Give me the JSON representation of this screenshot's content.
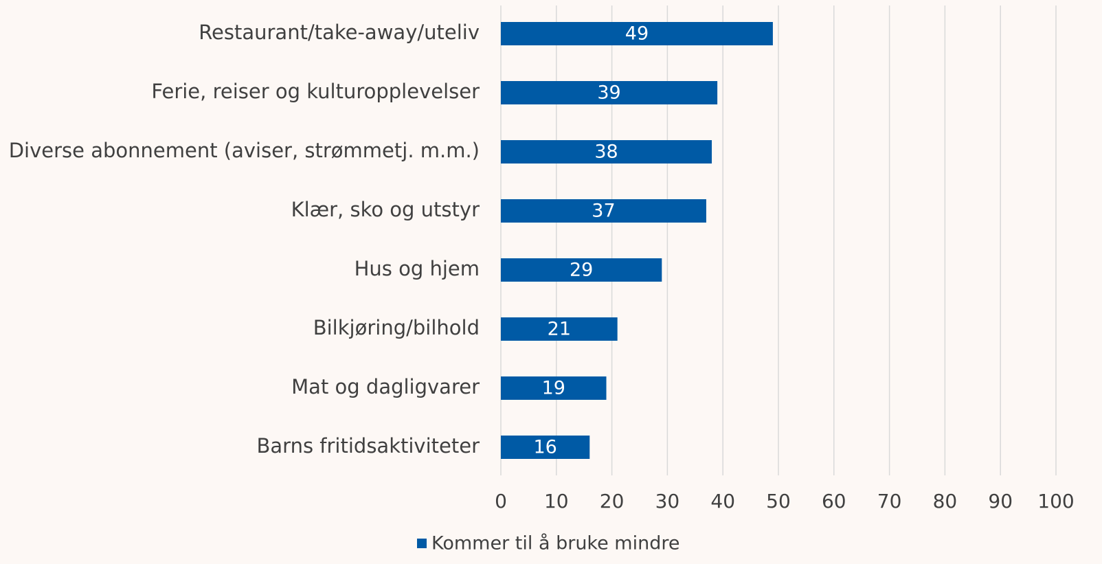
{
  "chart_data": {
    "type": "barh",
    "categories": [
      "Restaurant/take-away/uteliv",
      "Ferie, reiser og kulturopplevelser",
      "Diverse abonnement (aviser, strømmetj. m.m.)",
      "Klær, sko og utstyr ",
      "Hus og hjem",
      "Bilkjøring/bilhold",
      "Mat og dagligvarer",
      "Barns fritidsaktiviteter"
    ],
    "series": [
      {
        "name": "Kommer til å bruke mindre",
        "color": "#005aa5",
        "values": [
          49,
          39,
          38,
          37,
          29,
          21,
          19,
          16
        ]
      }
    ],
    "xlim": [
      0,
      100
    ],
    "xticks": [
      0,
      10,
      20,
      30,
      40,
      50,
      60,
      70,
      80,
      90,
      100
    ],
    "grid": true,
    "legend": "bottom"
  }
}
